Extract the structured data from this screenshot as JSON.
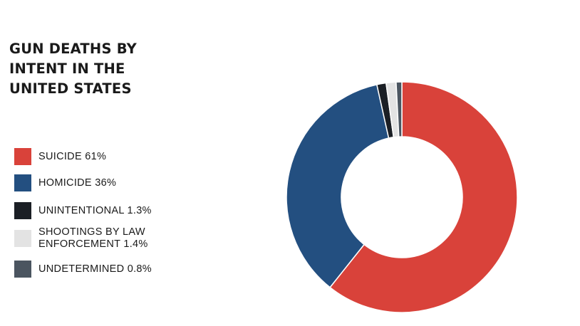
{
  "chart_data": {
    "type": "pie",
    "title": "GUN DEATHS BY INTENT IN THE UNITED STATES",
    "donut": true,
    "legend_position": "left",
    "slices": [
      {
        "label": "SUICIDE 61%",
        "name": "SUICIDE",
        "value": 61,
        "color": "#d9423a"
      },
      {
        "label": "HOMICIDE 36%",
        "name": "HOMICIDE",
        "value": 36,
        "color": "#234f80"
      },
      {
        "label": "UNINTENTIONAL 1.3%",
        "name": "UNINTENTIONAL",
        "value": 1.3,
        "color": "#1b1f25"
      },
      {
        "label": "SHOOTINGS BY LAW\nENFORCEMENT 1.4%",
        "name": "SHOOTINGS BY LAW ENFORCEMENT",
        "value": 1.4,
        "color": "#e3e3e3"
      },
      {
        "label": "UNDETERMINED 0.8%",
        "name": "UNDETERMINED",
        "value": 0.8,
        "color": "#4b5560"
      }
    ]
  }
}
